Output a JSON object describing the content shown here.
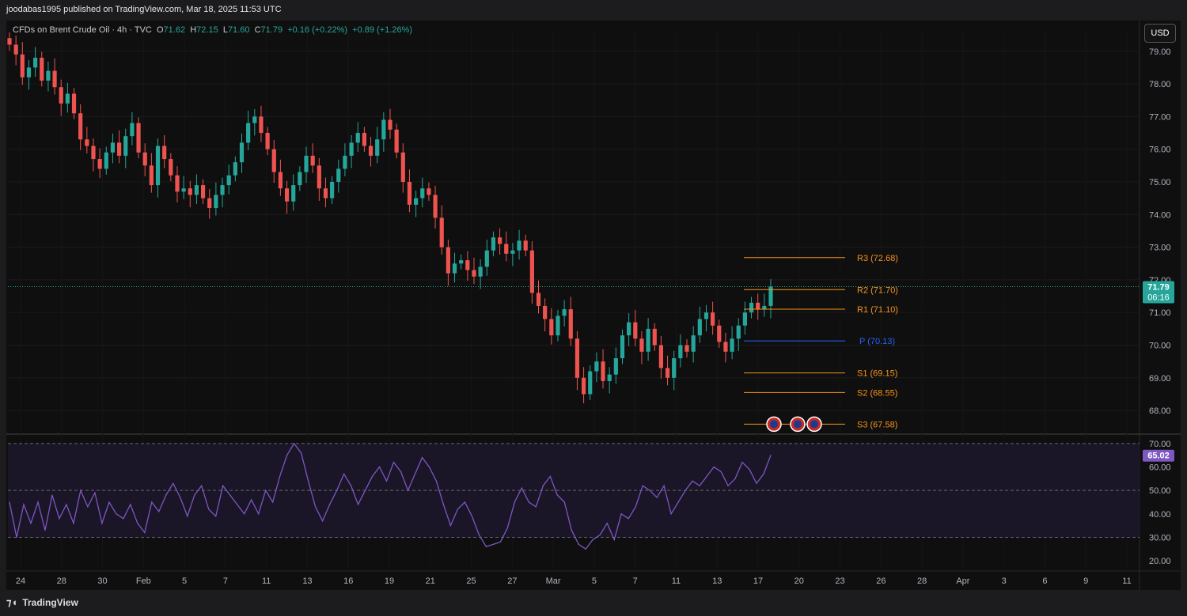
{
  "header": {
    "published": "joodabas1995 published on TradingView.com, Mar 18, 2025 11:53 UTC"
  },
  "legend": {
    "symbol": "CFDs on Brent Crude Oil · 4h · TVC",
    "o_label": "O",
    "o": "71.62",
    "h_label": "H",
    "h": "72.15",
    "l_label": "L",
    "l": "71.60",
    "c_label": "C",
    "c": "71.79",
    "change": "+0.16 (+0.22%)",
    "change2": "+0.89 (+1.26%)"
  },
  "currency": "USD",
  "price_badge": {
    "value": "71.79",
    "timer": "06:16"
  },
  "rsi_badge": "65.02",
  "footer": {
    "brand": "TradingView"
  },
  "colors": {
    "up": "#26a69a",
    "down": "#ef5350",
    "pivot_orange": "#f7931a",
    "pivot_blue": "#2962ff",
    "rsi": "#7e57c2"
  },
  "chart_data": [
    {
      "type": "candlestick",
      "title": "CFDs on Brent Crude Oil · 4h · TVC",
      "y_ticks": [
        "79.00",
        "78.00",
        "77.00",
        "76.00",
        "75.00",
        "74.00",
        "73.00",
        "72.00",
        "71.00",
        "70.00",
        "69.00",
        "68.00"
      ],
      "ylim": [
        67.3,
        79.6
      ],
      "x_ticks": [
        "24",
        "28",
        "30",
        "Feb",
        "5",
        "7",
        "11",
        "13",
        "16",
        "19",
        "21",
        "25",
        "27",
        "Mar",
        "5",
        "7",
        "11",
        "13",
        "17",
        "20",
        "23",
        "26",
        "28",
        "Apr",
        "3",
        "6",
        "9",
        "11"
      ],
      "close_path": [
        79.2,
        78.9,
        78.2,
        78.5,
        78.8,
        78.1,
        78.4,
        77.9,
        77.4,
        77.7,
        77.1,
        76.3,
        76.1,
        75.7,
        75.4,
        75.9,
        76.2,
        75.8,
        76.4,
        76.8,
        75.9,
        75.5,
        74.9,
        76.1,
        75.7,
        75.2,
        74.7,
        74.8,
        74.6,
        74.9,
        74.5,
        74.2,
        74.6,
        74.9,
        75.2,
        75.6,
        76.2,
        76.8,
        77.0,
        76.5,
        76.0,
        75.3,
        74.8,
        74.4,
        74.9,
        75.3,
        75.8,
        75.5,
        74.8,
        74.5,
        75.0,
        75.4,
        75.8,
        76.2,
        76.5,
        76.1,
        75.8,
        76.3,
        76.9,
        76.6,
        75.9,
        75.0,
        74.3,
        74.5,
        74.8,
        74.6,
        73.9,
        73.0,
        72.2,
        72.5,
        72.6,
        72.3,
        72.1,
        72.4,
        72.9,
        73.3,
        73.1,
        72.8,
        72.9,
        73.2,
        72.9,
        71.6,
        71.2,
        70.8,
        70.3,
        70.9,
        71.1,
        70.2,
        69.0,
        68.5,
        69.2,
        69.5,
        68.9,
        69.1,
        69.6,
        70.3,
        70.7,
        70.2,
        69.8,
        70.5,
        70.0,
        69.3,
        69.0,
        69.6,
        70.0,
        69.8,
        70.3,
        70.8,
        71.0,
        70.6,
        70.1,
        69.8,
        70.2,
        70.6,
        71.0,
        71.3,
        71.1,
        71.2,
        71.79
      ],
      "levels": [
        {
          "label": "R3 (72.68)",
          "value": 72.68
        },
        {
          "label": "R2 (71.70)",
          "value": 71.7
        },
        {
          "label": "R1 (71.10)",
          "value": 71.1
        },
        {
          "label": "P (70.13)",
          "value": 70.13
        },
        {
          "label": "S1 (69.15)",
          "value": 69.15
        },
        {
          "label": "S2 (68.55)",
          "value": 68.55
        },
        {
          "label": "S3 (67.58)",
          "value": 67.58
        }
      ]
    },
    {
      "type": "line",
      "title": "RSI",
      "y_ticks": [
        "70.00",
        "60.00",
        "50.00",
        "40.00",
        "30.00",
        "20.00"
      ],
      "ylim": [
        17,
        73
      ],
      "values": [
        45,
        30,
        44,
        36,
        45,
        33,
        48,
        38,
        44,
        36,
        50,
        43,
        49,
        36,
        45,
        40,
        38,
        44,
        36,
        32,
        45,
        41,
        48,
        53,
        47,
        39,
        48,
        52,
        42,
        39,
        52,
        48,
        44,
        40,
        46,
        40,
        50,
        45,
        56,
        65,
        70,
        66,
        54,
        43,
        37,
        44,
        50,
        57,
        52,
        44,
        50,
        56,
        60,
        54,
        62,
        58,
        50,
        57,
        64,
        60,
        54,
        44,
        35,
        42,
        45,
        39,
        31,
        26,
        27,
        28,
        34,
        45,
        51,
        45,
        43,
        52,
        56,
        48,
        45,
        33,
        27,
        25,
        29,
        31,
        36,
        29,
        40,
        38,
        43,
        52,
        50,
        47,
        52,
        40,
        45,
        50,
        54,
        52,
        56,
        60,
        58,
        52,
        55,
        62,
        59,
        53,
        57,
        65
      ]
    }
  ]
}
